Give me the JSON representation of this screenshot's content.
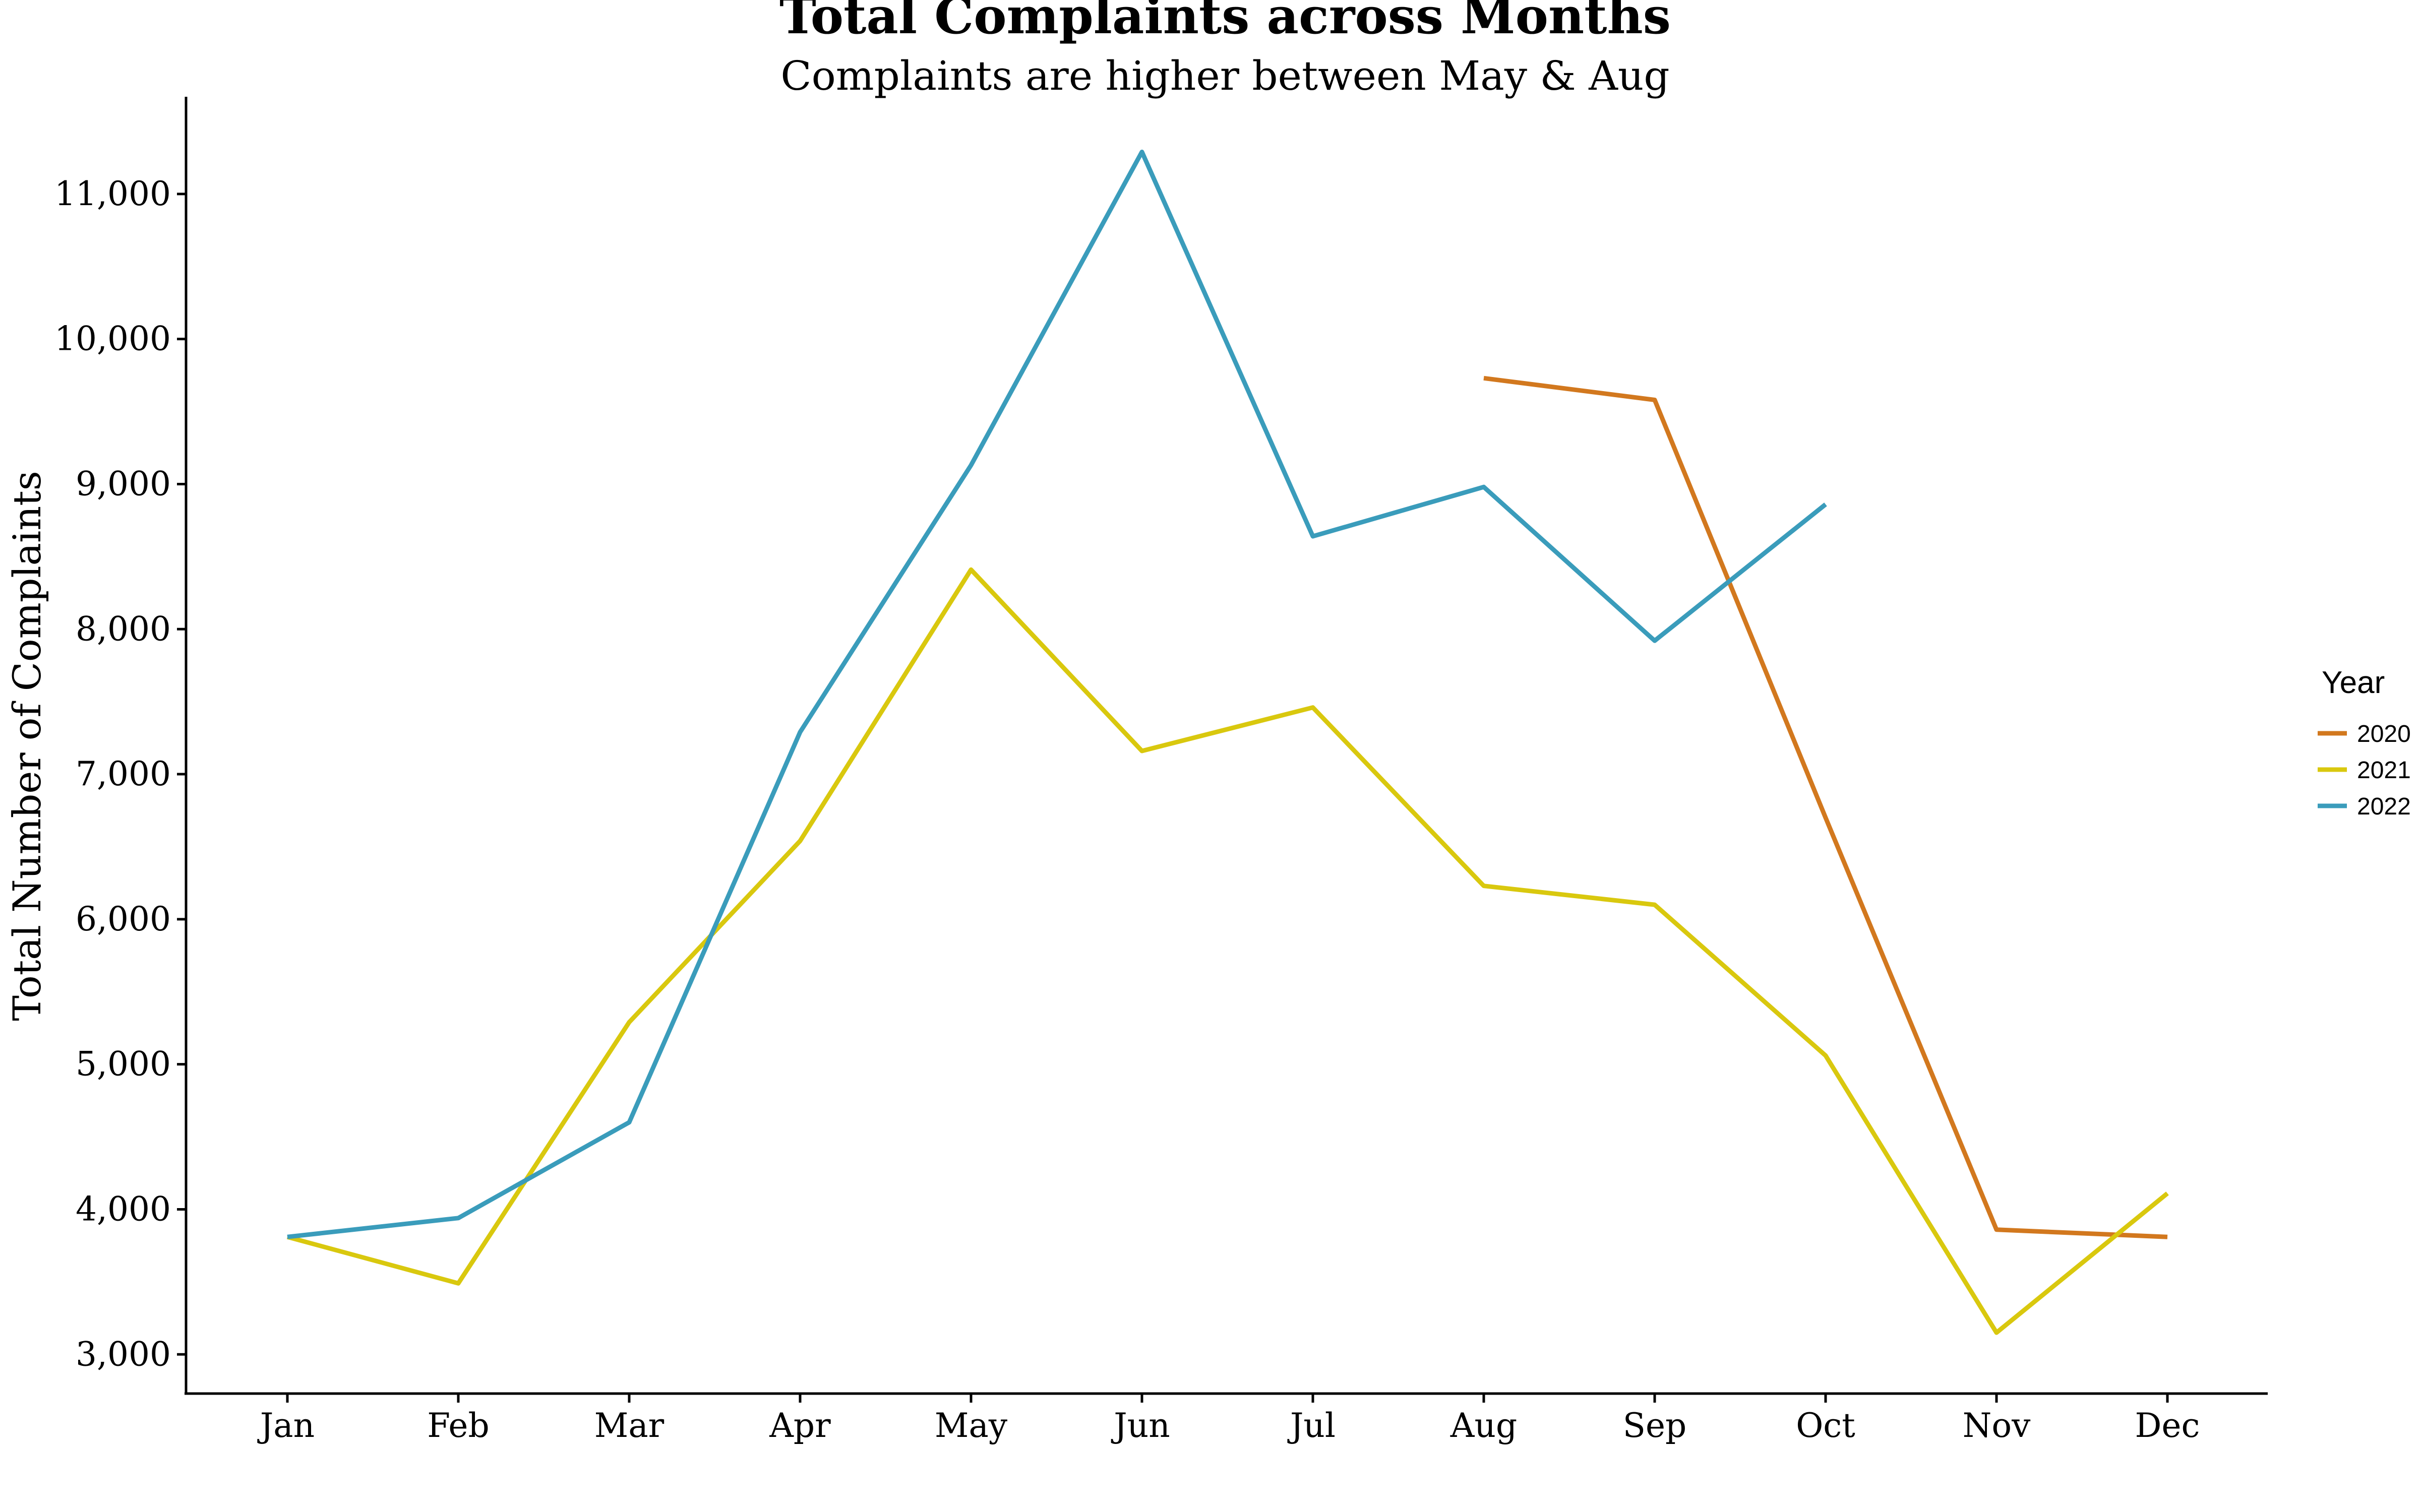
{
  "chart_data": {
    "type": "line",
    "title": "Total Complaints across Months",
    "subtitle": "Complaints are higher between May & Aug",
    "xlabel": "",
    "ylabel": "Total Number of Complaints",
    "categories": [
      "Jan",
      "Feb",
      "Mar",
      "Apr",
      "May",
      "Jun",
      "Jul",
      "Aug",
      "Sep",
      "Oct",
      "Nov",
      "Dec"
    ],
    "yticks": [
      3000,
      4000,
      5000,
      6000,
      7000,
      8000,
      9000,
      10000,
      11000
    ],
    "ytick_labels": [
      "3,000",
      "4,000",
      "5,000",
      "6,000",
      "7,000",
      "8,000",
      "9,000",
      "10,000",
      "11,000"
    ],
    "ylim": [
      2730,
      11670
    ],
    "grid": false,
    "legend": {
      "title": "Year",
      "position": "right"
    },
    "series": [
      {
        "name": "2020",
        "color": "#D2781E",
        "values": [
          null,
          null,
          null,
          null,
          null,
          null,
          null,
          9730,
          9580,
          6700,
          3860,
          3810
        ]
      },
      {
        "name": "2021",
        "color": "#D9C80E",
        "values": [
          3810,
          3490,
          5290,
          6540,
          8410,
          7160,
          7460,
          6230,
          6100,
          5060,
          3150,
          4110
        ]
      },
      {
        "name": "2022",
        "color": "#3A9CBB",
        "values": [
          3810,
          3940,
          4600,
          7290,
          9130,
          11290,
          8640,
          8980,
          7920,
          8860,
          null,
          null
        ]
      }
    ]
  }
}
